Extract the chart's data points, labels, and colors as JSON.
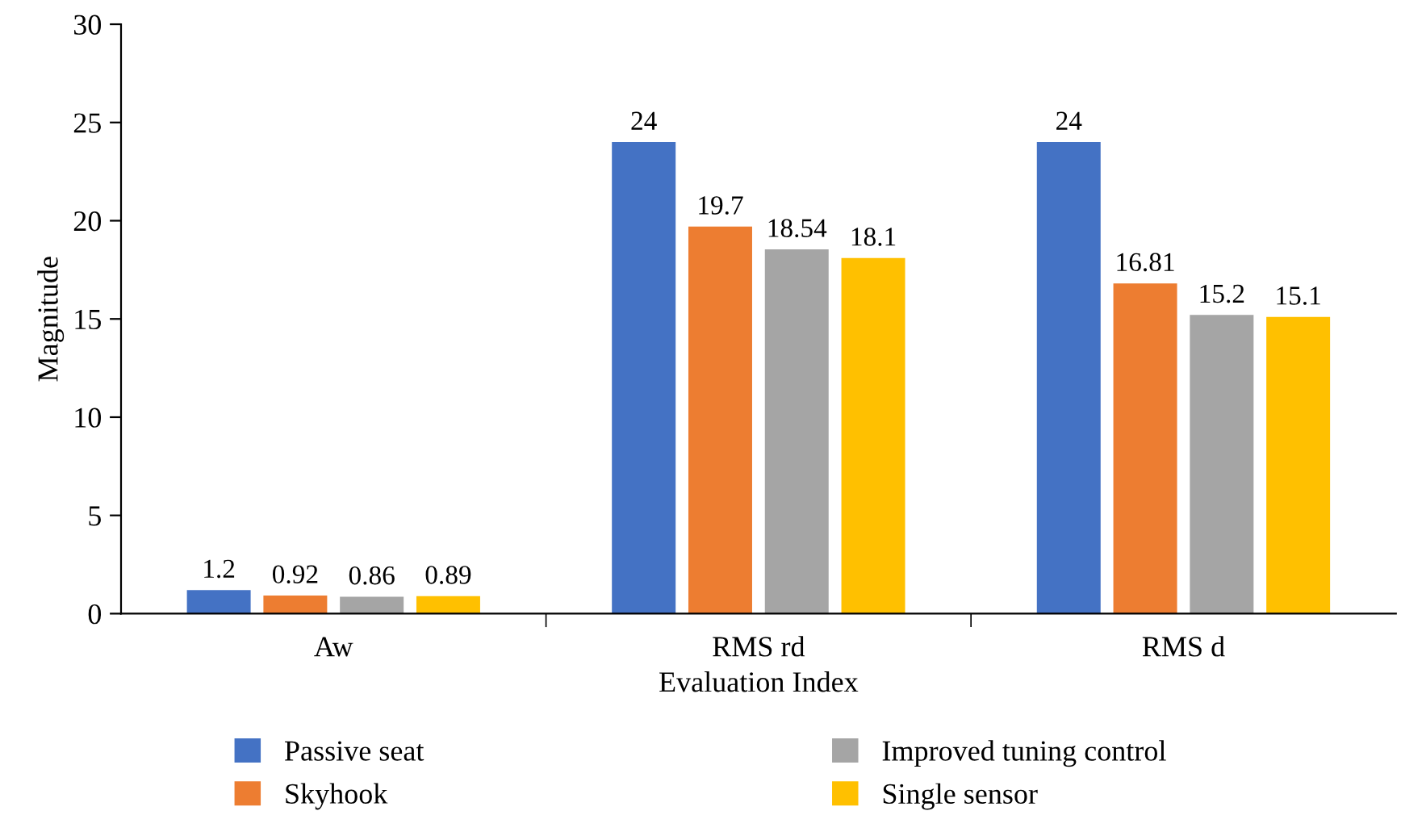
{
  "chart_data": {
    "type": "bar",
    "xlabel": "Evaluation Index",
    "ylabel": "Magnitude",
    "categories": [
      "Aw",
      "RMS rd",
      "RMS d"
    ],
    "series": [
      {
        "name": "Passive seat",
        "color": "#4472c4",
        "values": [
          1.2,
          24,
          24
        ]
      },
      {
        "name": "Skyhook",
        "color": "#ed7d31",
        "values": [
          0.92,
          19.7,
          16.81
        ]
      },
      {
        "name": "Improved tuning control",
        "color": "#a5a5a5",
        "values": [
          0.86,
          18.54,
          15.2
        ]
      },
      {
        "name": "Single sensor",
        "color": "#ffc000",
        "values": [
          0.89,
          18.1,
          15.1
        ]
      }
    ],
    "ylim": [
      0,
      30
    ],
    "yticks": [
      0,
      5,
      10,
      15,
      20,
      25,
      30
    ],
    "data_labels": true,
    "grid": false,
    "legend": "bottom"
  }
}
